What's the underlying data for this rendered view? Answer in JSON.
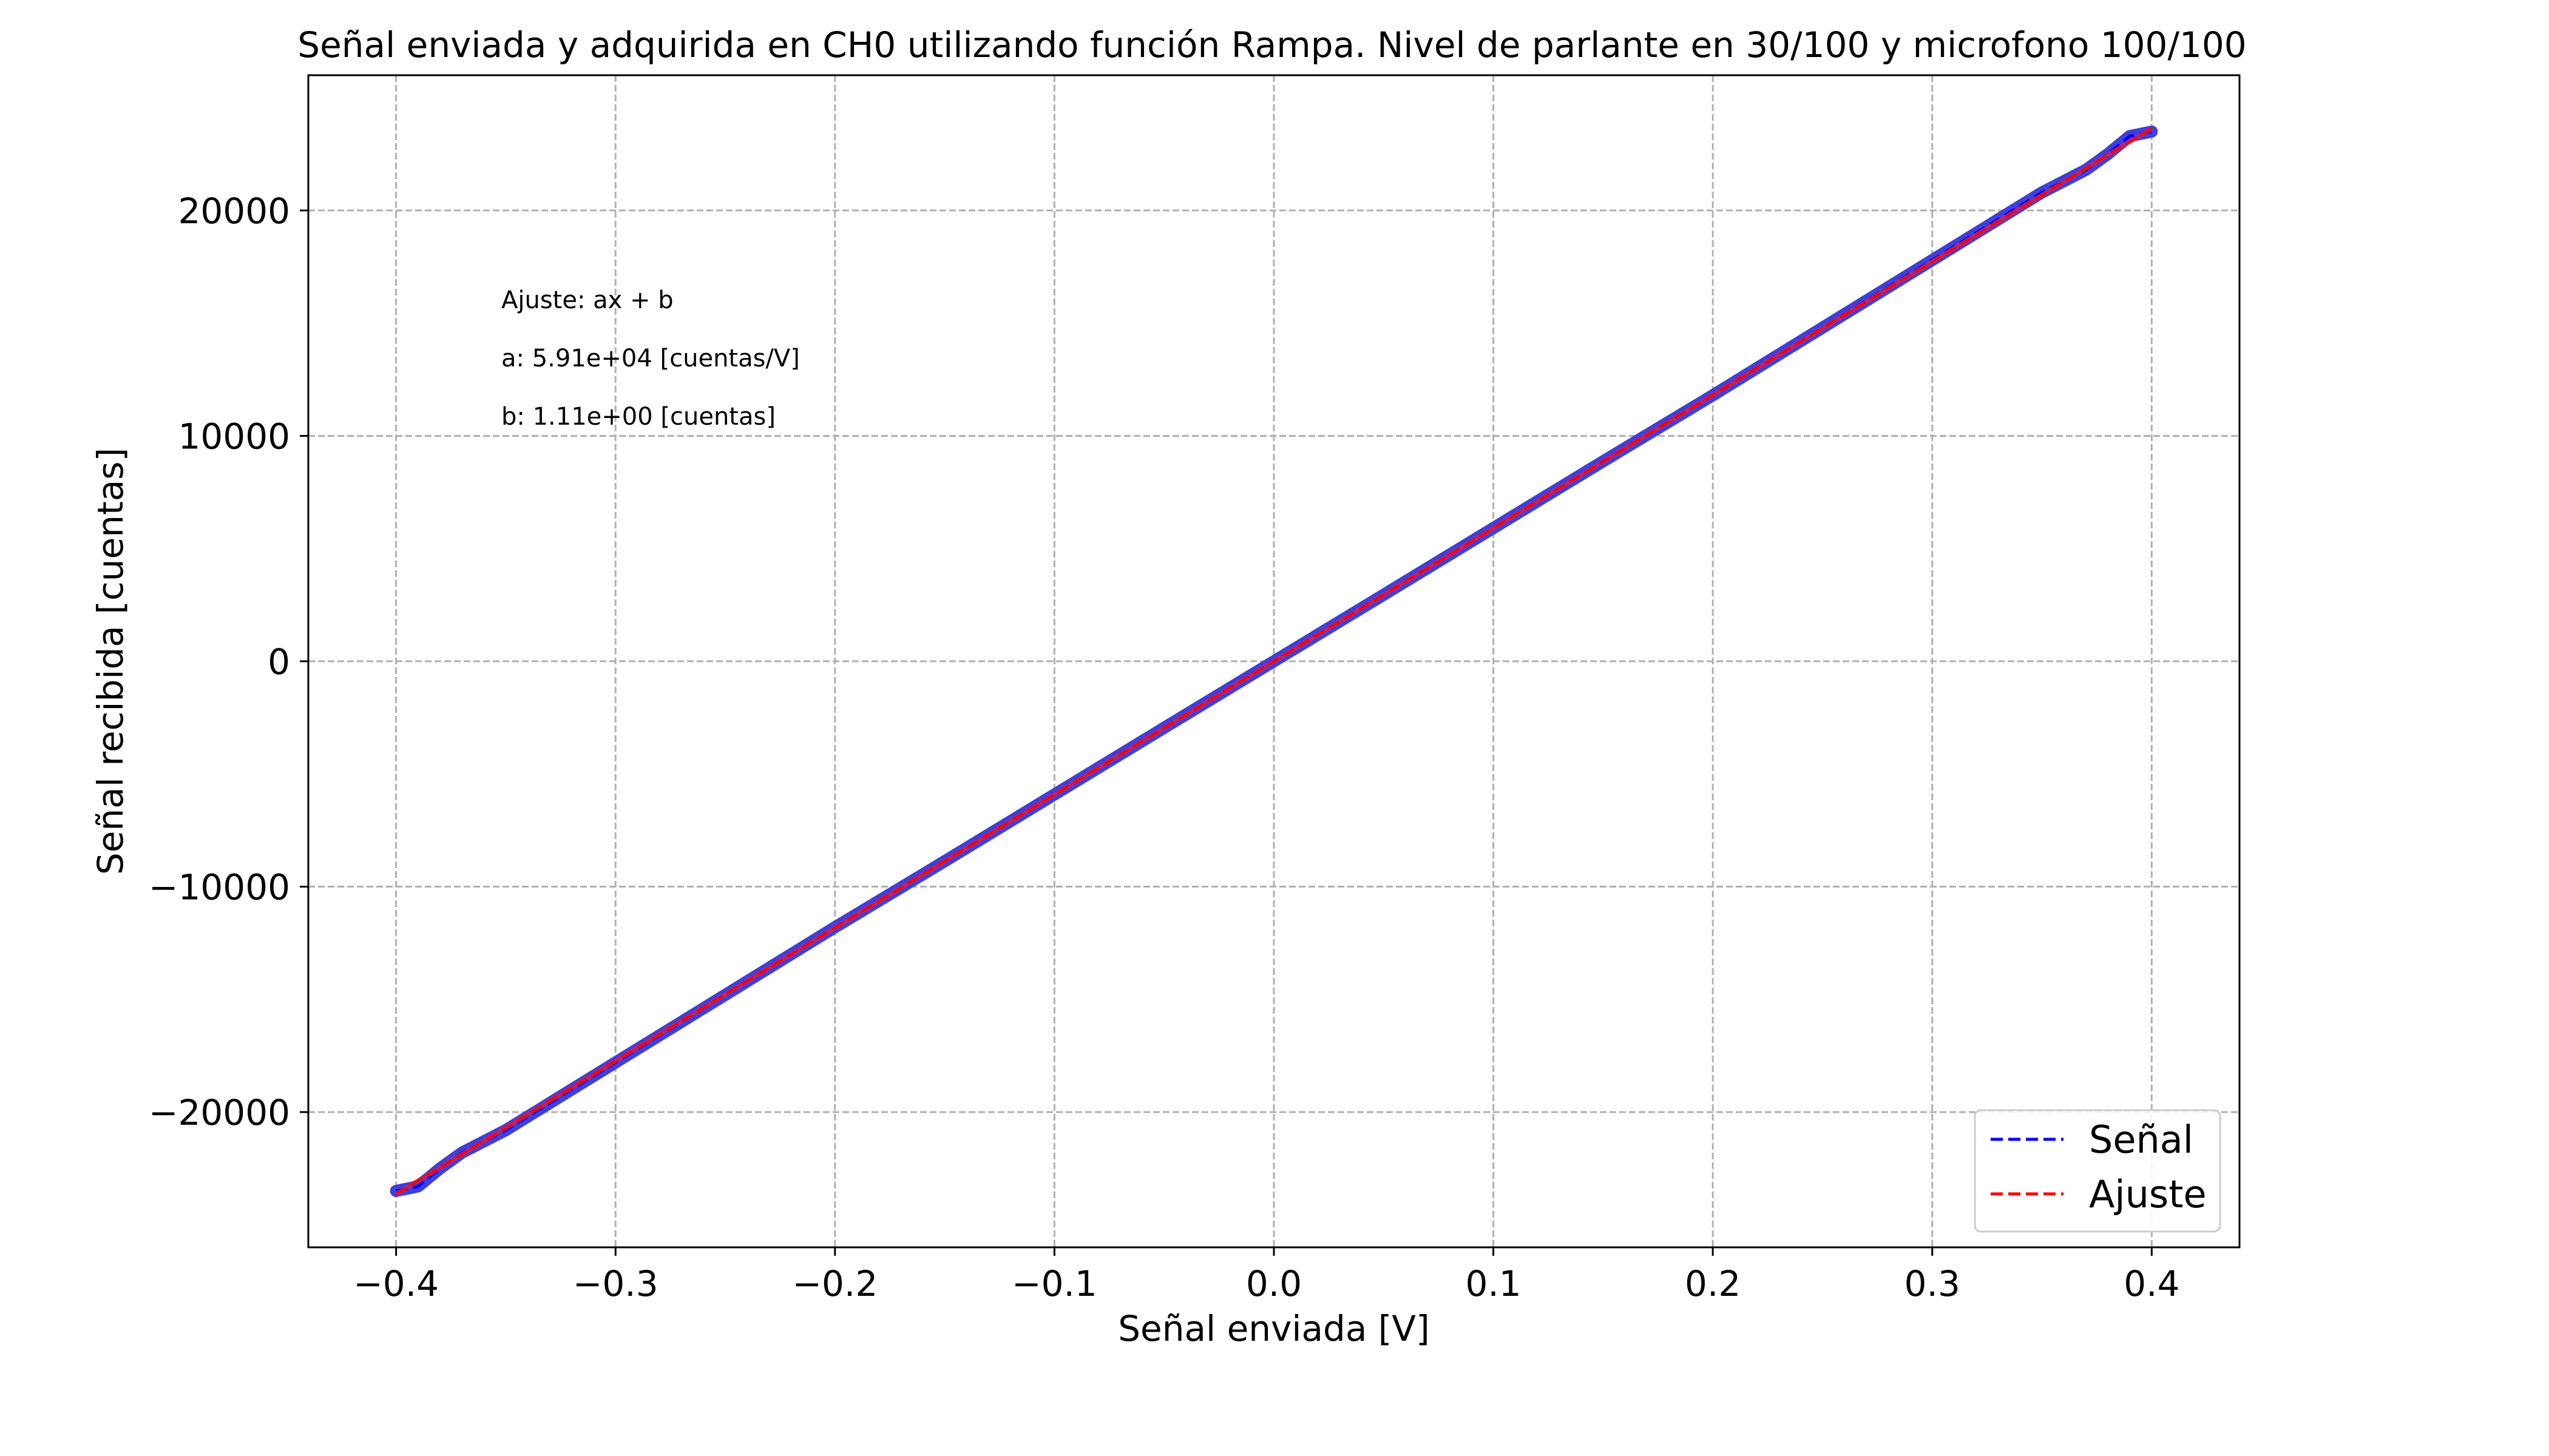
{
  "chart_data": {
    "type": "line",
    "title": "Señal enviada y adquirida en CH0 utilizando función Rampa. Nivel de parlante en 30/100 y microfono 100/100",
    "xlabel": "Señal enviada [V]",
    "ylabel": "Señal recibida [cuentas]",
    "xlim": [
      -0.44,
      0.44
    ],
    "ylim": [
      -26000,
      26000
    ],
    "x_ticks": [
      -0.4,
      -0.3,
      -0.2,
      -0.1,
      0.0,
      0.1,
      0.2,
      0.3,
      0.4
    ],
    "x_tick_labels": [
      "−0.4",
      "−0.3",
      "−0.2",
      "−0.1",
      "0.0",
      "0.1",
      "0.2",
      "0.3",
      "0.4"
    ],
    "y_ticks": [
      -20000,
      -10000,
      0,
      10000,
      20000
    ],
    "y_tick_labels": [
      "−20000",
      "−10000",
      "0",
      "10000",
      "20000"
    ],
    "grid": true,
    "legend_position": "lower-right",
    "annotations": [
      "Ajuste: ax + b",
      "a: 5.91e+04 [cuentas/V]",
      "b: 1.11e+00 [cuentas]"
    ],
    "fit": {
      "a": 59100,
      "b": 1.11
    },
    "series": [
      {
        "name": "Señal",
        "color": "#0000ff",
        "style": "dashed",
        "x": [
          -0.4,
          -0.39,
          -0.38,
          -0.37,
          -0.36,
          -0.35,
          -0.34,
          -0.33,
          -0.32,
          -0.3,
          -0.25,
          -0.2,
          -0.15,
          -0.1,
          -0.05,
          0.0,
          0.05,
          0.1,
          0.15,
          0.2,
          0.25,
          0.3,
          0.32,
          0.33,
          0.34,
          0.35,
          0.36,
          0.37,
          0.38,
          0.39,
          0.4
        ],
        "y": [
          -23500,
          -23300,
          -22500,
          -21800,
          -21300,
          -20800,
          -20200,
          -19600,
          -19000,
          -17800,
          -14800,
          -11800,
          -8870,
          -5910,
          -2950,
          0,
          2950,
          5910,
          8870,
          11800,
          14800,
          17800,
          19000,
          19600,
          20200,
          20800,
          21300,
          21800,
          22500,
          23300,
          23500
        ]
      },
      {
        "name": "Ajuste",
        "color": "#ff0000",
        "style": "dashed",
        "x": [
          -0.4,
          0.4
        ],
        "y": [
          -23639,
          23641
        ]
      }
    ]
  }
}
